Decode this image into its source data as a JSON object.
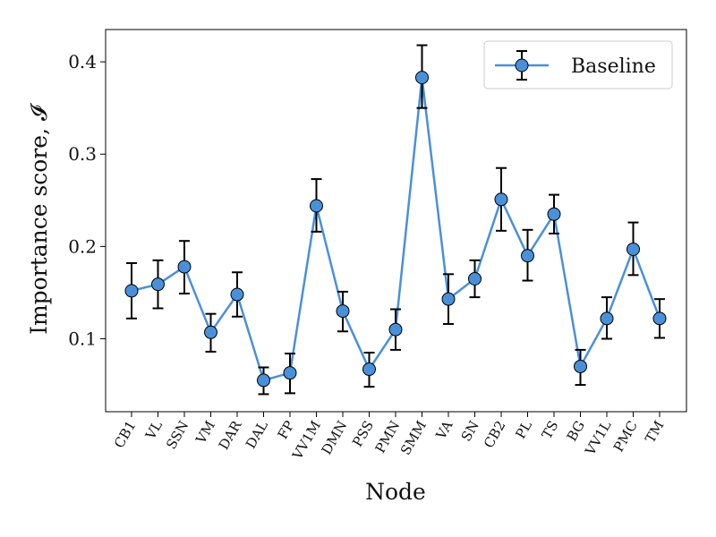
{
  "chart_data": {
    "type": "line",
    "title": "",
    "xlabel": "Node",
    "ylabel": "Importance score, 𝓘",
    "categories": [
      "CB1",
      "VL",
      "SSN",
      "VM",
      "DAR",
      "DAL",
      "FP",
      "VV1M",
      "DMN",
      "PSS",
      "PMN",
      "SMM",
      "VA",
      "SN",
      "CB2",
      "PL",
      "TS",
      "BG",
      "VV1L",
      "PMC",
      "TM"
    ],
    "series": [
      {
        "name": "Baseline",
        "color": "#4a90d9",
        "values": [
          0.152,
          0.159,
          0.178,
          0.107,
          0.148,
          0.055,
          0.063,
          0.244,
          0.13,
          0.067,
          0.11,
          0.383,
          0.143,
          0.165,
          0.251,
          0.19,
          0.235,
          0.07,
          0.122,
          0.197,
          0.122
        ],
        "err_low": [
          0.122,
          0.133,
          0.149,
          0.086,
          0.124,
          0.04,
          0.041,
          0.216,
          0.108,
          0.048,
          0.088,
          0.35,
          0.116,
          0.145,
          0.217,
          0.163,
          0.214,
          0.05,
          0.1,
          0.169,
          0.101
        ],
        "err_high": [
          0.182,
          0.185,
          0.206,
          0.127,
          0.172,
          0.069,
          0.084,
          0.273,
          0.151,
          0.085,
          0.132,
          0.418,
          0.17,
          0.185,
          0.285,
          0.218,
          0.256,
          0.088,
          0.145,
          0.226,
          0.143
        ]
      }
    ],
    "ylim": [
      0.021,
      0.435
    ],
    "yticks": [
      {
        "value": 0.1,
        "label": "0.1"
      },
      {
        "value": 0.2,
        "label": "0.2"
      },
      {
        "value": 0.3,
        "label": "0.3"
      },
      {
        "value": 0.4,
        "label": "0.4"
      }
    ],
    "grid": false,
    "legend_position": "top-right"
  }
}
